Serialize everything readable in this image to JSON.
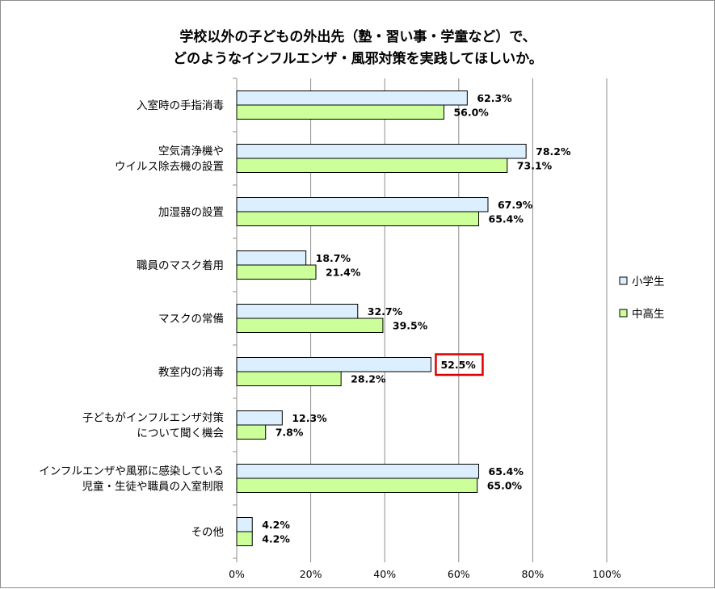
{
  "chart_data": {
    "type": "bar",
    "orientation": "horizontal",
    "title": [
      "学校以外の子どもの外出先（塾・習い事・学童など）で、",
      "どのようなインフルエンザ・風邪対策を実践してほしいか。"
    ],
    "categories": [
      [
        "入室時の手指消毒"
      ],
      [
        "空気清浄機や",
        "ウイルス除去機の設置"
      ],
      [
        "加湿器の設置"
      ],
      [
        "職員のマスク着用"
      ],
      [
        "マスクの常備"
      ],
      [
        "教室内の消毒"
      ],
      [
        "子どもがインフルエンザ対策",
        "について聞く機会"
      ],
      [
        "インフルエンザや風邪に感染している",
        "児童・生徒や職員の入室制限"
      ],
      [
        "その他"
      ]
    ],
    "series": [
      {
        "name": "小学生",
        "color": "#dcefff",
        "values": [
          62.3,
          78.2,
          67.9,
          18.7,
          32.7,
          52.5,
          12.3,
          65.4,
          4.2
        ],
        "labels": [
          "62.3%",
          "78.2%",
          "67.9%",
          "18.7%",
          "32.7%",
          "52.5%",
          "12.3%",
          "65.4%",
          "4.2%"
        ]
      },
      {
        "name": "中高生",
        "color": "#ccff99",
        "values": [
          56.0,
          73.1,
          65.4,
          21.4,
          39.5,
          28.2,
          7.8,
          65.0,
          4.2
        ],
        "labels": [
          "56.0%",
          "73.1%",
          "65.4%",
          "21.4%",
          "39.5%",
          "28.2%",
          "7.8%",
          "65.0%",
          "4.2%"
        ]
      }
    ],
    "xlim": [
      0,
      100
    ],
    "xticks": [
      0,
      20,
      40,
      60,
      80,
      100
    ],
    "xtick_labels": [
      "0%",
      "20%",
      "40%",
      "60%",
      "80%",
      "100%"
    ],
    "grid": true,
    "legend_position": "right",
    "highlight": {
      "series": 0,
      "category": 5,
      "color": "#dd0000"
    }
  }
}
